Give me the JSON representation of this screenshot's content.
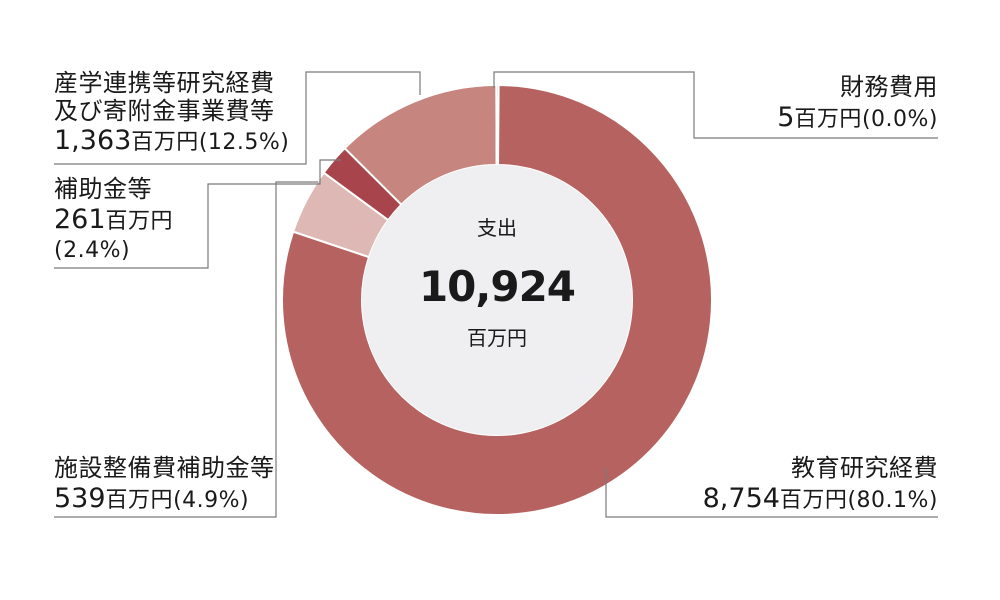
{
  "chart_data": {
    "type": "pie",
    "center": {
      "label": "支出",
      "value": "10,924",
      "unit": "百万円"
    },
    "slices": [
      {
        "name": "教育研究経費",
        "value": 8754,
        "amount_text": "8,754",
        "unit": "百万円",
        "percent_text": "(80.1%)",
        "color": "#b66261"
      },
      {
        "name": "施設整備費補助金等",
        "value": 539,
        "amount_text": "539",
        "unit": "百万円",
        "percent_text": "(4.9%)",
        "color": "#deb8b4"
      },
      {
        "name": "補助金等",
        "value": 261,
        "amount_text": "261",
        "unit": "百万円",
        "percent_text": "(2.4%)",
        "color": "#a8454c"
      },
      {
        "name": "産学連携等研究経費及び寄附金事業費等",
        "name_lines": [
          "産学連携等研究経費",
          "及び寄附金事業費等"
        ],
        "value": 1363,
        "amount_text": "1,363",
        "unit": "百万円",
        "percent_text": "(12.5%)",
        "color": "#c6857f"
      },
      {
        "name": "財務費用",
        "value": 5,
        "amount_text": "5",
        "unit": "百万円",
        "percent_text": "(0.0%)",
        "color": "#d8a9a4"
      }
    ],
    "colors": {
      "hole": "#efeff1",
      "leader": "#7a7a7a",
      "text": "#1a1a1a"
    }
  }
}
